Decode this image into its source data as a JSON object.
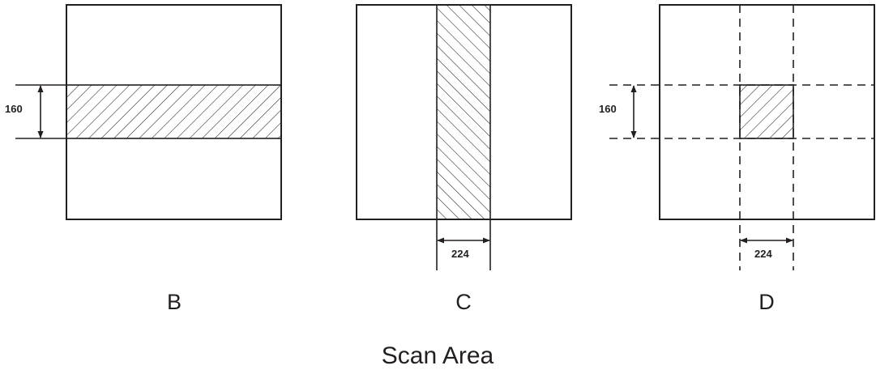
{
  "panels": [
    {
      "label": "B",
      "dimension_label": "160"
    },
    {
      "label": "C",
      "dimension_label": "224"
    },
    {
      "label": "D",
      "dimension_label_vertical": "160",
      "dimension_label_horizontal": "224"
    }
  ],
  "caption": "Scan Area",
  "colors": {
    "ink": "#231f20",
    "background": "#ffffff"
  }
}
